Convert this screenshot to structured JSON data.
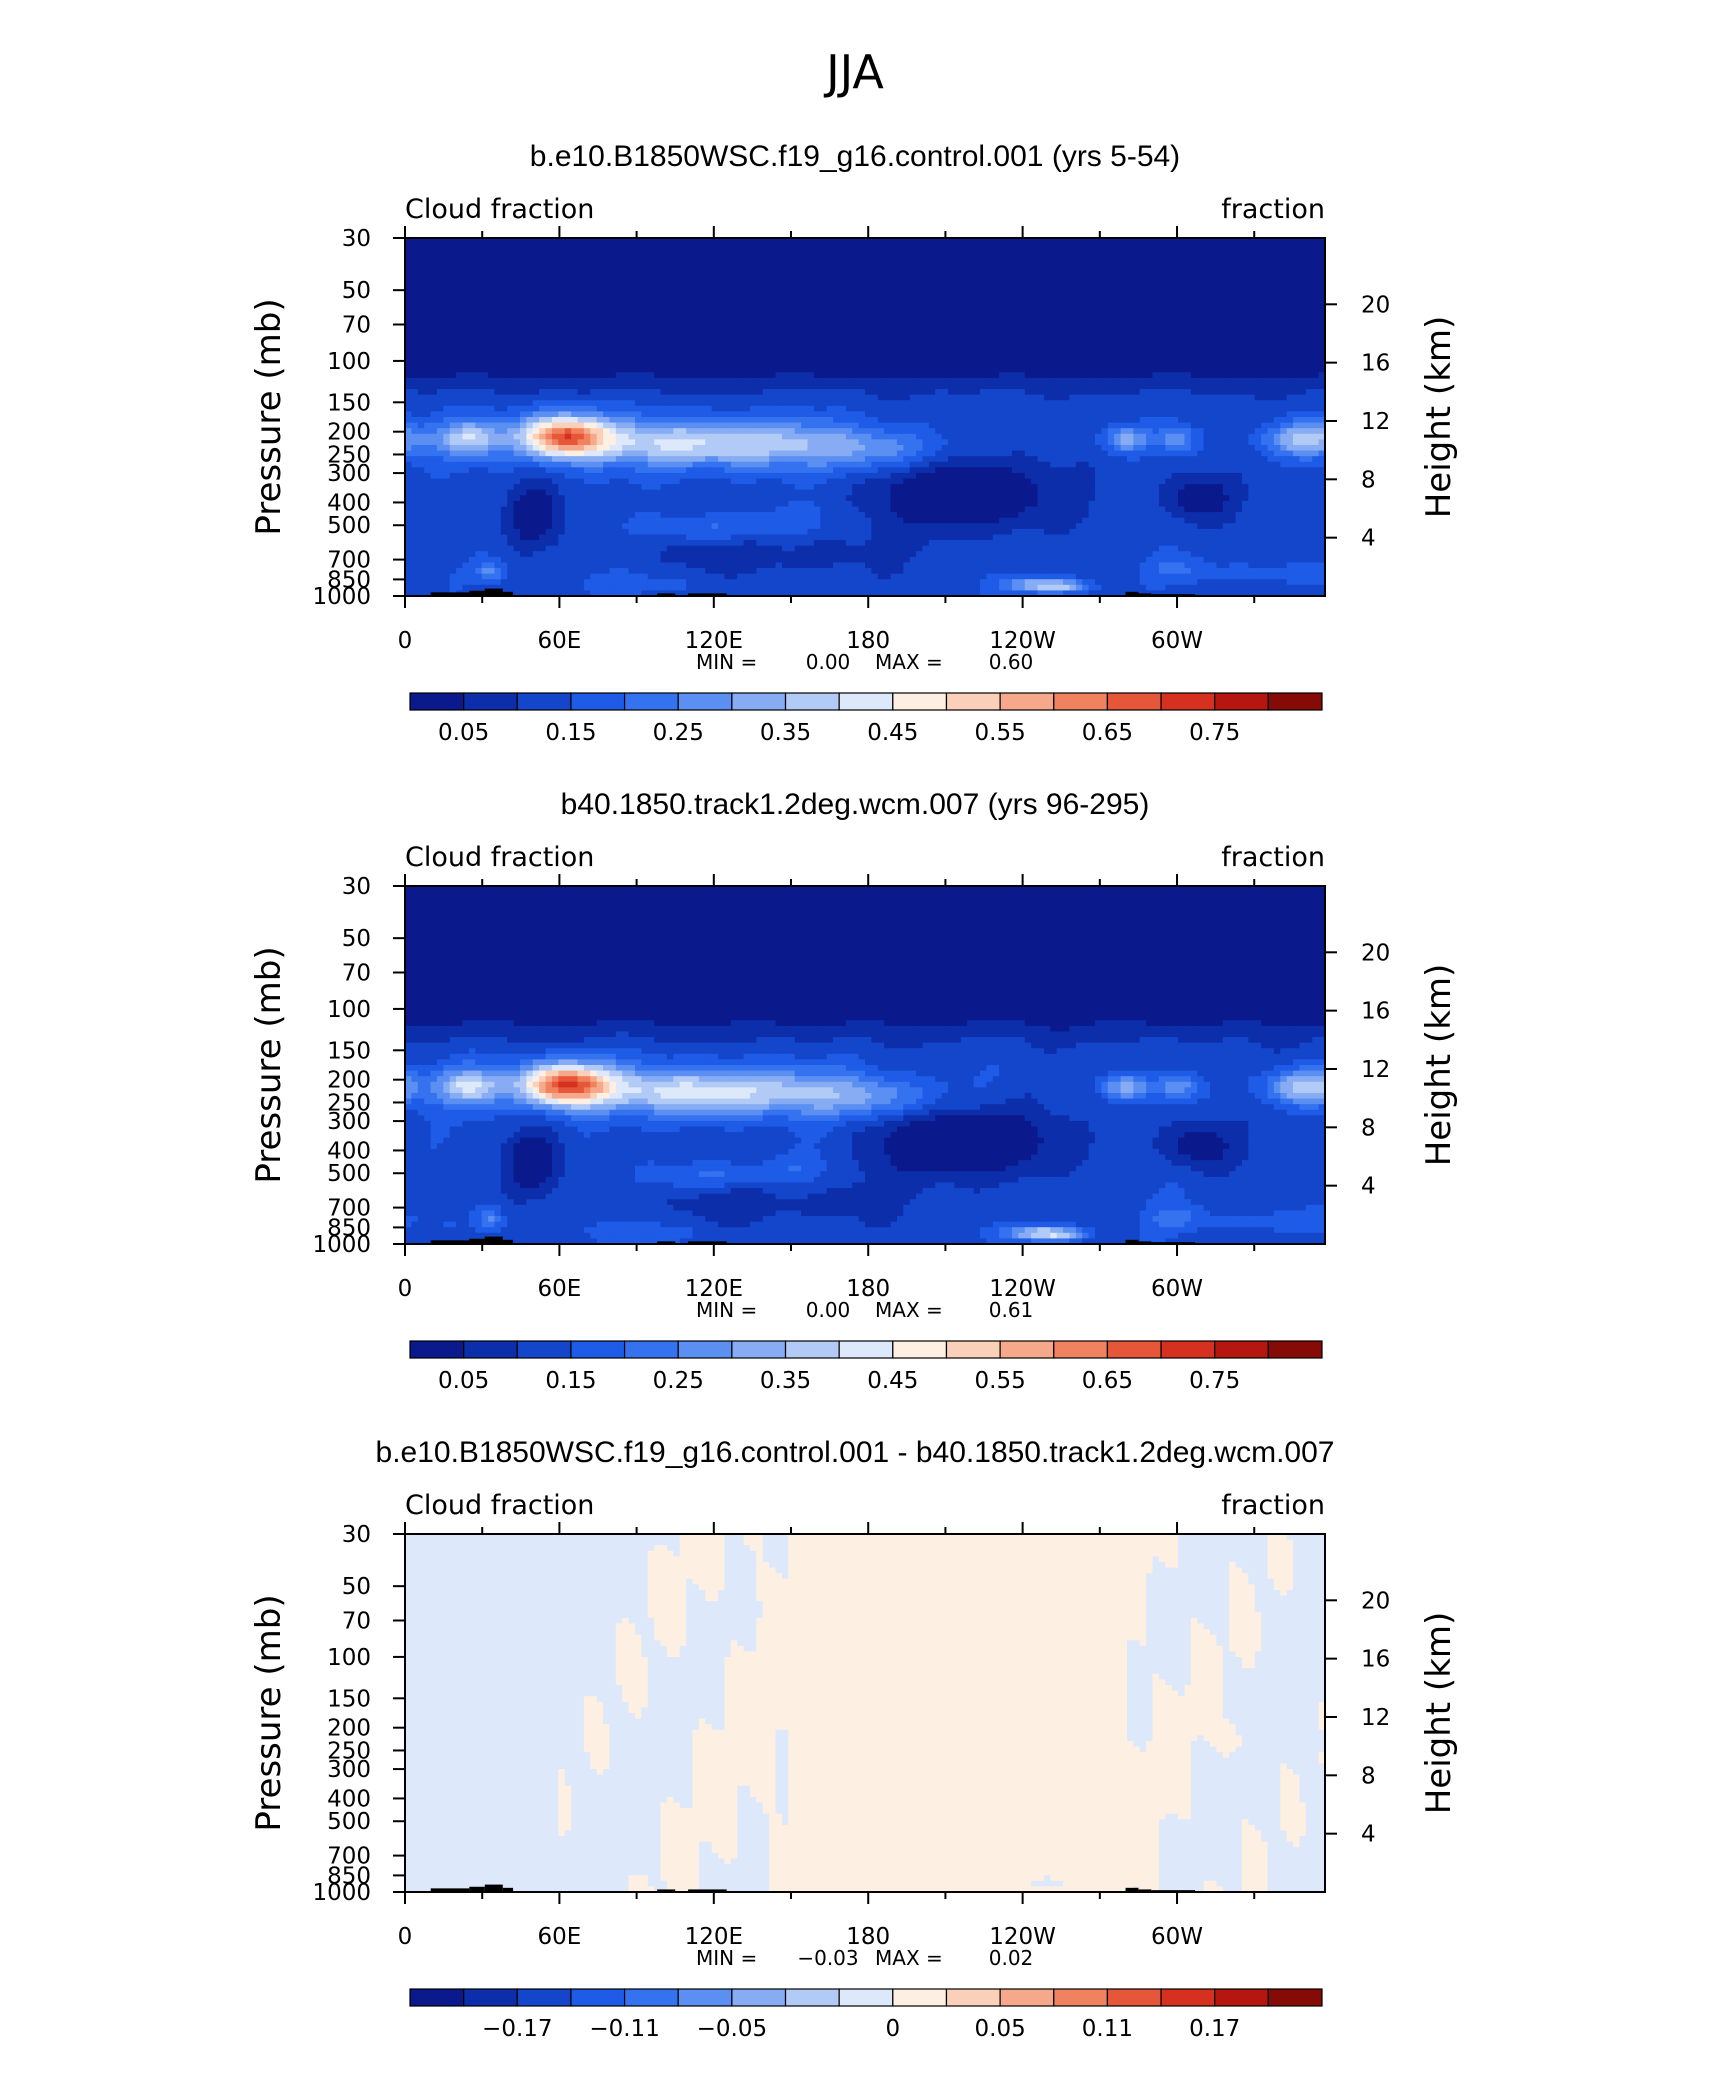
{
  "figure": {
    "title": "JJA"
  },
  "charts": [
    {
      "title": "b.e10.B1850WSC.f19_g16.control.001 (yrs 5-54)",
      "left_string": "Cloud fraction",
      "right_string": "fraction",
      "min_label": "MIN =",
      "min_value": "0.00",
      "max_label": "MAX =",
      "max_value": "0.60",
      "colorbar": "cloud",
      "variant": 0
    },
    {
      "title": "b40.1850.track1.2deg.wcm.007 (yrs 96-295)",
      "left_string": "Cloud fraction",
      "right_string": "fraction",
      "min_label": "MIN =",
      "min_value": "0.00",
      "max_label": "MAX =",
      "max_value": "0.61",
      "colorbar": "cloud",
      "variant": 1
    },
    {
      "title": "b.e10.B1850WSC.f19_g16.control.001 - b40.1850.track1.2deg.wcm.007",
      "left_string": "Cloud fraction",
      "right_string": "fraction",
      "min_label": "MIN =",
      "min_value": "−0.03",
      "max_label": "MAX =",
      "max_value": "0.02",
      "colorbar": "diff",
      "variant": 2
    }
  ],
  "axes": {
    "ylabel": "Pressure (mb)",
    "ylabel_right": "Height (km)",
    "pressure_ticks": [
      30,
      50,
      70,
      100,
      150,
      200,
      250,
      300,
      400,
      500,
      700,
      850,
      1000
    ],
    "pressure_tick_labels": [
      "30",
      "50",
      "70",
      "100",
      "150",
      "200",
      "250",
      "300",
      "400",
      "500",
      "700",
      "850",
      "1000"
    ],
    "height_ticks_km": [
      20,
      16,
      12,
      8,
      4
    ],
    "height_tick_labels": [
      "20",
      "16",
      "12",
      "8",
      "4"
    ],
    "lon_ticks": [
      0,
      60,
      120,
      180,
      240,
      300
    ],
    "lon_tick_labels": [
      "0",
      "60E",
      "120E",
      "180",
      "120W",
      "60W"
    ],
    "lon_range": [
      0,
      357.5
    ],
    "pressure_range": [
      30,
      1000
    ],
    "y_scale": "log"
  },
  "colorbars": {
    "cloud": {
      "colors": [
        "#0a1a8c",
        "#0c2eaa",
        "#1446cc",
        "#1e5be6",
        "#3572f0",
        "#5b8ff2",
        "#87acf3",
        "#b2cbf6",
        "#dde8fb",
        "#fdf0e2",
        "#fbd0b8",
        "#f6a98a",
        "#f08260",
        "#e6573a",
        "#d53020",
        "#b51610",
        "#860a05"
      ],
      "labels": [
        "0.05",
        "0.15",
        "0.25",
        "0.35",
        "0.45",
        "0.55",
        "0.65",
        "0.75"
      ]
    },
    "diff": {
      "colors": [
        "#0a1a8c",
        "#0c2eaa",
        "#1446cc",
        "#1e5be6",
        "#3572f0",
        "#5b8ff2",
        "#87acf3",
        "#b2cbf6",
        "#dde8fb",
        "#fdf0e2",
        "#fbd0b8",
        "#f6a98a",
        "#f08260",
        "#e6573a",
        "#d53020",
        "#b51610",
        "#860a05"
      ],
      "labels": [
        "−0.17",
        "−0.11",
        "−0.05",
        "0",
        "0.05",
        "0.11",
        "0.17"
      ]
    }
  },
  "chart_data": [
    {
      "type": "heatmap",
      "title": "b.e10.B1850WSC.f19_g16.control.001 (yrs 5-54)",
      "xlabel": "",
      "ylabel": "Pressure (mb)",
      "xlim": [
        0,
        357.5
      ],
      "ylim": [
        1000,
        30
      ],
      "min": 0.0,
      "max": 0.6,
      "features": [
        {
          "lon": 62,
          "p": 200,
          "value": 0.58
        },
        {
          "lon": 25,
          "p": 220,
          "value": 0.36
        },
        {
          "lon": 140,
          "p": 230,
          "value": 0.34
        },
        {
          "lon": 220,
          "p": 330,
          "value": 0.02
        },
        {
          "lon": 50,
          "p": 450,
          "value": 0.04
        },
        {
          "lon": 308,
          "p": 370,
          "value": 0.03
        },
        {
          "lon": 260,
          "p": 920,
          "value": 0.4
        }
      ]
    },
    {
      "type": "heatmap",
      "title": "b40.1850.track1.2deg.wcm.007 (yrs 96-295)",
      "xlabel": "",
      "ylabel": "Pressure (mb)",
      "xlim": [
        0,
        357.5
      ],
      "ylim": [
        1000,
        30
      ],
      "min": 0.0,
      "max": 0.61,
      "features": [
        {
          "lon": 62,
          "p": 200,
          "value": 0.59
        },
        {
          "lon": 25,
          "p": 220,
          "value": 0.35
        },
        {
          "lon": 140,
          "p": 230,
          "value": 0.33
        },
        {
          "lon": 220,
          "p": 330,
          "value": 0.02
        },
        {
          "lon": 50,
          "p": 450,
          "value": 0.04
        },
        {
          "lon": 308,
          "p": 370,
          "value": 0.03
        },
        {
          "lon": 260,
          "p": 920,
          "value": 0.4
        }
      ]
    },
    {
      "type": "heatmap",
      "title": "b.e10.B1850WSC.f19_g16.control.001 - b40.1850.track1.2deg.wcm.007",
      "xlabel": "",
      "ylabel": "Pressure (mb)",
      "xlim": [
        0,
        357.5
      ],
      "ylim": [
        1000,
        30
      ],
      "min": -0.03,
      "max": 0.02,
      "features": [
        {
          "lon": 225,
          "p": 210,
          "value": 0.02
        },
        {
          "lon": 320,
          "p": 230,
          "value": 0.02
        },
        {
          "lon": 350,
          "p": 230,
          "value": -0.03
        },
        {
          "lon": 250,
          "p": 920,
          "value": -0.02
        }
      ]
    }
  ]
}
